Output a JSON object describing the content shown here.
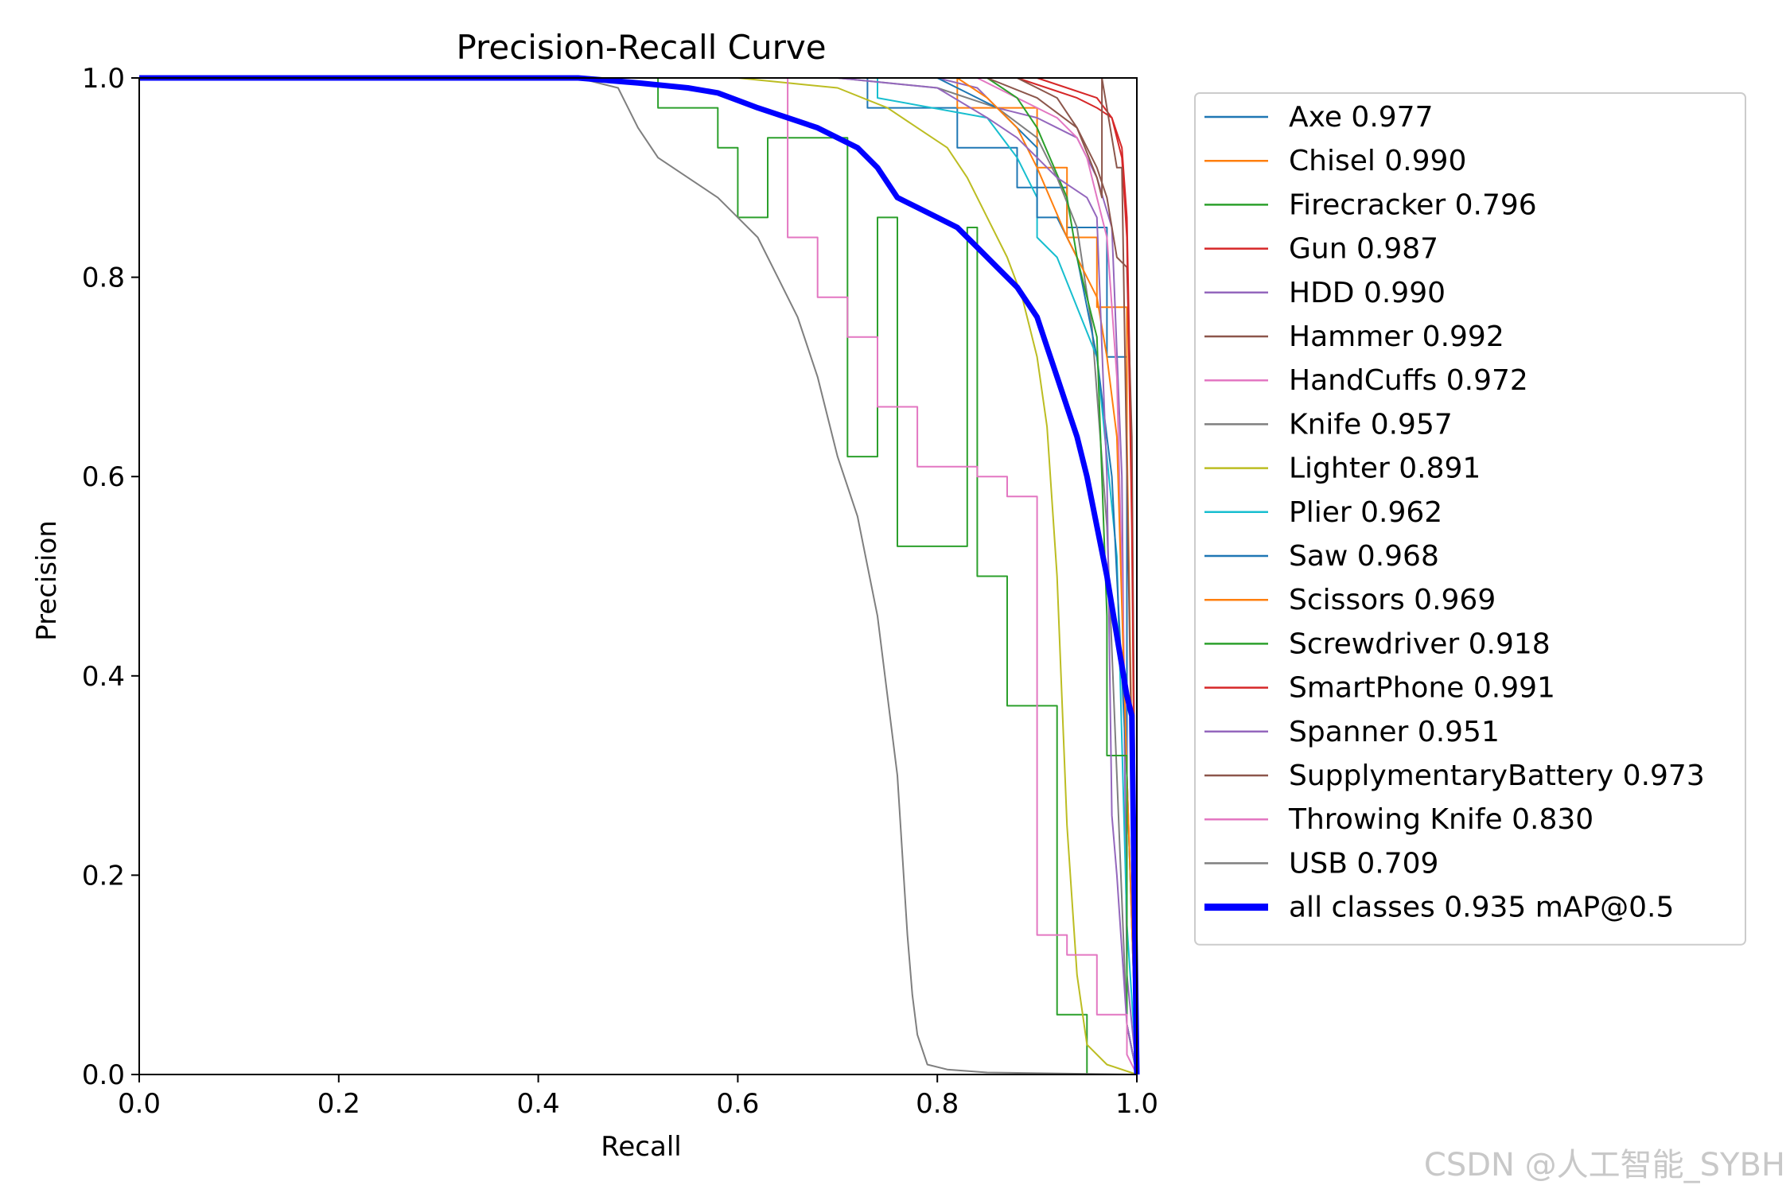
{
  "chart_data": {
    "type": "line",
    "title": "Precision-Recall Curve",
    "xlabel": "Recall",
    "ylabel": "Precision",
    "xlim": [
      0,
      1
    ],
    "ylim": [
      0,
      1
    ],
    "xticks": [
      "0.0",
      "0.2",
      "0.4",
      "0.6",
      "0.8",
      "1.0"
    ],
    "yticks": [
      "0.0",
      "0.2",
      "0.4",
      "0.6",
      "0.8",
      "1.0"
    ],
    "legend_position": "outside-right",
    "series": [
      {
        "name": "Axe",
        "label": "Axe 0.977",
        "color": "#1f77b4",
        "x": [
          0,
          0.73,
          0.73,
          0.82,
          0.82,
          0.88,
          0.88,
          0.93,
          0.93,
          0.97,
          0.97,
          0.99,
          0.99,
          1.0
        ],
        "y": [
          1,
          1,
          0.97,
          0.97,
          0.93,
          0.93,
          0.89,
          0.89,
          0.85,
          0.85,
          0.72,
          0.72,
          0.05,
          0
        ]
      },
      {
        "name": "Chisel",
        "label": "Chisel 0.990",
        "color": "#ff7f0e",
        "x": [
          0,
          0.82,
          0.82,
          0.9,
          0.9,
          0.93,
          0.93,
          0.96,
          0.96,
          0.99,
          0.99,
          1.0
        ],
        "y": [
          1,
          1,
          0.97,
          0.97,
          0.91,
          0.91,
          0.84,
          0.84,
          0.77,
          0.77,
          0.64,
          0
        ]
      },
      {
        "name": "Firecracker",
        "label": "Firecracker 0.796",
        "color": "#2ca02c",
        "x": [
          0,
          0.52,
          0.52,
          0.58,
          0.58,
          0.6,
          0.6,
          0.63,
          0.63,
          0.71,
          0.71,
          0.74,
          0.74,
          0.76,
          0.76,
          0.83,
          0.83,
          0.84,
          0.84,
          0.87,
          0.87,
          0.92,
          0.92,
          0.95,
          0.95,
          1.0
        ],
        "y": [
          1,
          1,
          0.97,
          0.97,
          0.93,
          0.93,
          0.86,
          0.86,
          0.94,
          0.94,
          0.62,
          0.62,
          0.86,
          0.86,
          0.53,
          0.53,
          0.85,
          0.85,
          0.5,
          0.5,
          0.37,
          0.37,
          0.06,
          0.06,
          0,
          0
        ]
      },
      {
        "name": "Gun",
        "label": "Gun 0.987",
        "color": "#d62728",
        "x": [
          0,
          0.88,
          0.91,
          0.94,
          0.96,
          0.975,
          0.985,
          0.99,
          0.995,
          1.0
        ],
        "y": [
          1,
          1,
          0.99,
          0.98,
          0.97,
          0.96,
          0.93,
          0.86,
          0.6,
          0
        ]
      },
      {
        "name": "HDD",
        "label": "HDD 0.990",
        "color": "#9467bd",
        "x": [
          0,
          0.8,
          0.84,
          0.86,
          0.9,
          0.92,
          0.94,
          0.96,
          0.975,
          0.985,
          0.99,
          1.0
        ],
        "y": [
          1,
          1,
          0.99,
          0.97,
          0.96,
          0.95,
          0.94,
          0.9,
          0.85,
          0.6,
          0.1,
          0
        ]
      },
      {
        "name": "Hammer",
        "label": "Hammer 0.992",
        "color": "#8c564b",
        "x": [
          0,
          0.88,
          0.9,
          0.92,
          0.94,
          0.96,
          0.97,
          0.98,
          0.99,
          0.995,
          1.0
        ],
        "y": [
          1,
          1,
          0.99,
          0.98,
          0.95,
          0.91,
          0.88,
          0.82,
          0.81,
          0.64,
          0
        ]
      },
      {
        "name": "HandCuffs",
        "label": "HandCuffs 0.972",
        "color": "#e377c2",
        "x": [
          0,
          0.84,
          0.86,
          0.88,
          0.9,
          0.92,
          0.94,
          0.95,
          0.96,
          0.97,
          0.98,
          0.99,
          1.0
        ],
        "y": [
          1,
          1,
          0.99,
          0.98,
          0.97,
          0.96,
          0.94,
          0.92,
          0.88,
          0.84,
          0.7,
          0.3,
          0
        ]
      },
      {
        "name": "Knife",
        "label": "Knife 0.957",
        "color": "#7f7f7f",
        "x": [
          0,
          0.7,
          0.8,
          0.86,
          0.9,
          0.92,
          0.94,
          0.955,
          0.97,
          0.98,
          0.99,
          1.0
        ],
        "y": [
          1,
          1,
          0.99,
          0.97,
          0.94,
          0.9,
          0.85,
          0.75,
          0.55,
          0.3,
          0.05,
          0
        ]
      },
      {
        "name": "Lighter",
        "label": "Lighter 0.891",
        "color": "#bcbd22",
        "x": [
          0,
          0.6,
          0.65,
          0.7,
          0.75,
          0.78,
          0.81,
          0.83,
          0.85,
          0.87,
          0.885,
          0.9,
          0.91,
          0.92,
          0.93,
          0.94,
          0.95,
          0.97,
          1.0
        ],
        "y": [
          1,
          1,
          0.995,
          0.99,
          0.97,
          0.95,
          0.93,
          0.9,
          0.86,
          0.82,
          0.78,
          0.72,
          0.65,
          0.5,
          0.25,
          0.1,
          0.03,
          0.01,
          0
        ]
      },
      {
        "name": "Plier",
        "label": "Plier 0.962",
        "color": "#17becf",
        "x": [
          0,
          0.74,
          0.74,
          0.85,
          0.88,
          0.9,
          0.9,
          0.92,
          0.94,
          0.96,
          0.98,
          0.99,
          1.0
        ],
        "y": [
          1,
          1,
          0.98,
          0.96,
          0.92,
          0.88,
          0.84,
          0.82,
          0.77,
          0.72,
          0.52,
          0.15,
          0
        ]
      },
      {
        "name": "Saw",
        "label": "Saw 0.968",
        "color": "#1f77b4",
        "x": [
          0,
          0.8,
          0.86,
          0.88,
          0.9,
          0.9,
          0.92,
          0.94,
          0.96,
          0.975,
          0.99,
          1.0
        ],
        "y": [
          1,
          1,
          0.97,
          0.95,
          0.93,
          0.86,
          0.86,
          0.82,
          0.72,
          0.6,
          0.3,
          0
        ]
      },
      {
        "name": "Scissors",
        "label": "Scissors 0.969",
        "color": "#ff7f0e",
        "x": [
          0,
          0.82,
          0.85,
          0.88,
          0.9,
          0.93,
          0.96,
          0.97,
          0.98,
          0.99,
          1.0
        ],
        "y": [
          1,
          1,
          0.98,
          0.95,
          0.91,
          0.84,
          0.78,
          0.72,
          0.64,
          0.3,
          0
        ]
      },
      {
        "name": "Screwdriver",
        "label": "Screwdriver 0.918",
        "color": "#2ca02c",
        "x": [
          0,
          0.85,
          0.88,
          0.9,
          0.93,
          0.94,
          0.96,
          0.97,
          0.97,
          0.99,
          0.99,
          1.0
        ],
        "y": [
          1,
          1,
          0.98,
          0.95,
          0.88,
          0.82,
          0.74,
          0.46,
          0.32,
          0.32,
          0.05,
          0
        ]
      },
      {
        "name": "SmartPhone",
        "label": "SmartPhone 0.991",
        "color": "#d62728",
        "x": [
          0,
          0.9,
          0.93,
          0.96,
          0.975,
          0.985,
          0.99,
          0.995,
          1.0
        ],
        "y": [
          1,
          1,
          0.99,
          0.98,
          0.96,
          0.92,
          0.84,
          0.55,
          0
        ]
      },
      {
        "name": "Spanner",
        "label": "Spanner 0.951",
        "color": "#9467bd",
        "x": [
          0,
          0.7,
          0.8,
          0.85,
          0.88,
          0.9,
          0.92,
          0.95,
          0.96,
          0.97,
          0.975,
          0.98,
          0.99,
          1.0
        ],
        "y": [
          1,
          1,
          0.99,
          0.96,
          0.94,
          0.92,
          0.9,
          0.88,
          0.86,
          0.6,
          0.26,
          0.2,
          0.05,
          0
        ]
      },
      {
        "name": "SupplymentaryBattery",
        "label": "SupplymentaryBattery 0.973",
        "color": "#8c564b",
        "x": [
          0,
          0.85,
          0.9,
          0.94,
          0.96,
          0.965,
          0.965,
          0.98,
          0.985,
          1.0
        ],
        "y": [
          1,
          1,
          0.98,
          0.95,
          0.9,
          0.88,
          1.0,
          0.91,
          0.91,
          0
        ]
      },
      {
        "name": "Throwing Knife",
        "label": "Throwing Knife 0.830",
        "color": "#e377c2",
        "x": [
          0,
          0.65,
          0.65,
          0.68,
          0.68,
          0.71,
          0.71,
          0.74,
          0.74,
          0.78,
          0.78,
          0.84,
          0.84,
          0.87,
          0.87,
          0.9,
          0.9,
          0.93,
          0.93,
          0.96,
          0.96,
          0.99,
          0.99,
          1.0
        ],
        "y": [
          1,
          1,
          0.84,
          0.84,
          0.78,
          0.78,
          0.74,
          0.74,
          0.67,
          0.67,
          0.61,
          0.61,
          0.6,
          0.6,
          0.58,
          0.58,
          0.14,
          0.14,
          0.12,
          0.12,
          0.06,
          0.06,
          0.02,
          0
        ]
      },
      {
        "name": "USB",
        "label": "USB 0.709",
        "color": "#7f7f7f",
        "x": [
          0,
          0.44,
          0.48,
          0.5,
          0.52,
          0.55,
          0.58,
          0.6,
          0.62,
          0.64,
          0.66,
          0.68,
          0.7,
          0.72,
          0.74,
          0.76,
          0.765,
          0.77,
          0.775,
          0.78,
          0.79,
          0.81,
          0.85,
          1.0
        ],
        "y": [
          1,
          1,
          0.99,
          0.95,
          0.92,
          0.9,
          0.88,
          0.86,
          0.84,
          0.8,
          0.76,
          0.7,
          0.62,
          0.56,
          0.46,
          0.3,
          0.22,
          0.14,
          0.08,
          0.04,
          0.01,
          0.005,
          0.002,
          0
        ]
      },
      {
        "name": "all classes",
        "label": "all classes 0.935 mAP@0.5",
        "color": "#0000ff",
        "bold": true,
        "x": [
          0,
          0.44,
          0.5,
          0.55,
          0.58,
          0.62,
          0.65,
          0.68,
          0.7,
          0.72,
          0.74,
          0.76,
          0.78,
          0.8,
          0.82,
          0.84,
          0.86,
          0.88,
          0.9,
          0.91,
          0.92,
          0.93,
          0.94,
          0.95,
          0.96,
          0.97,
          0.98,
          0.99,
          0.995,
          1.0
        ],
        "y": [
          1,
          1,
          0.995,
          0.99,
          0.985,
          0.97,
          0.96,
          0.95,
          0.94,
          0.93,
          0.91,
          0.88,
          0.87,
          0.86,
          0.85,
          0.83,
          0.81,
          0.79,
          0.76,
          0.73,
          0.7,
          0.67,
          0.64,
          0.6,
          0.55,
          0.5,
          0.44,
          0.38,
          0.36,
          0
        ]
      }
    ]
  },
  "watermark": "CSDN @人工智能_SYBH"
}
